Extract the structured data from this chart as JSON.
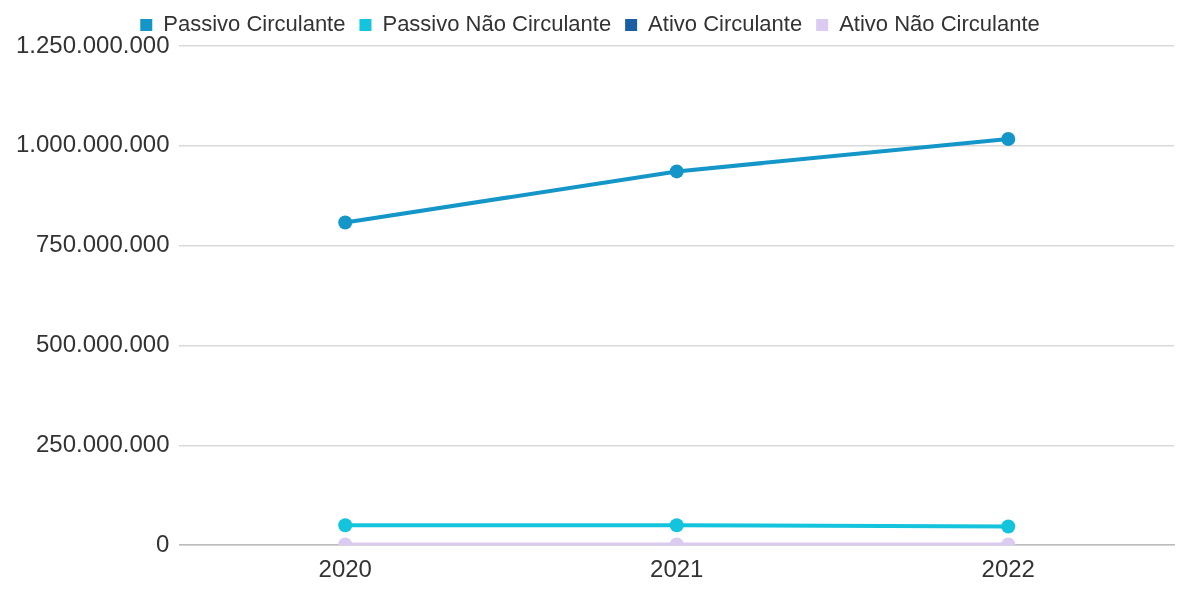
{
  "chart_data": {
    "type": "line",
    "categories": [
      "2020",
      "2021",
      "2022"
    ],
    "series": [
      {
        "name": "Passivo Circulante",
        "color": "#1496c8",
        "values": [
          808000000,
          936000000,
          1017000000
        ]
      },
      {
        "name": "Passivo Não Circulante",
        "color": "#14c3dc",
        "values": [
          50000000,
          50000000,
          47000000
        ]
      },
      {
        "name": "Ativo Circulante",
        "color": "#1a5fa3",
        "values": [
          null,
          null,
          null
        ]
      },
      {
        "name": "Ativo Não Circulante",
        "color": "#dccbf0",
        "values": [
          2000000,
          2000000,
          2000000
        ]
      }
    ],
    "ylim": [
      0,
      1250000000
    ],
    "yticks": [
      {
        "value": 0,
        "label": "0"
      },
      {
        "value": 250000000,
        "label": "250.000.000"
      },
      {
        "value": 500000000,
        "label": "500.000.000"
      },
      {
        "value": 750000000,
        "label": "750.000.000"
      },
      {
        "value": 1000000000,
        "label": "1.000.000.000"
      },
      {
        "value": 1250000000,
        "label": "1.250.000.000"
      }
    ],
    "grid": "y",
    "legend": "top",
    "marker": "circle",
    "line_style": "solid"
  }
}
